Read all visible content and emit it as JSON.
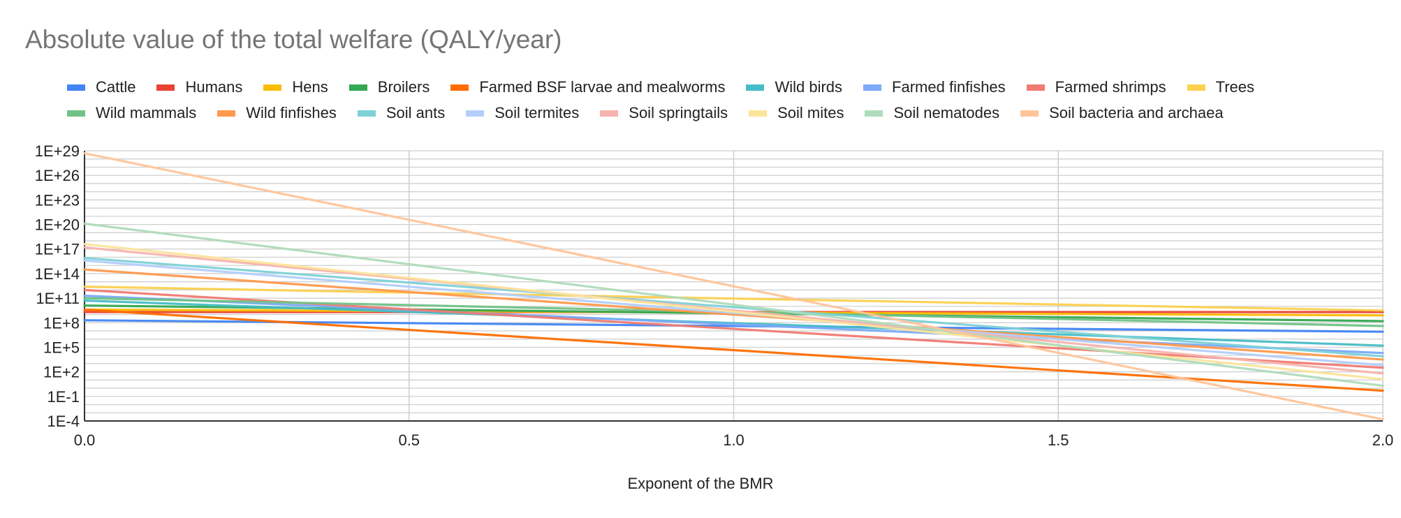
{
  "chart_data": {
    "type": "line",
    "title": "Absolute value of the total welfare (QALY/year)",
    "xlabel": "Exponent of the BMR",
    "ylabel": "",
    "y_scale": "log10",
    "xlim": [
      0,
      2
    ],
    "ylim_log10": [
      -4,
      29
    ],
    "x_ticks": [
      "0.0",
      "0.5",
      "1.0",
      "1.5",
      "2.0"
    ],
    "y_ticks": [
      "1E+29",
      "1E+26",
      "1E+23",
      "1E+20",
      "1E+17",
      "1E+14",
      "1E+11",
      "1E+8",
      "1E+5",
      "1E+2",
      "1E-1",
      "1E-4"
    ],
    "legend_position": "top",
    "x": [
      0,
      2
    ],
    "series": [
      {
        "name": "Cattle",
        "color": "#4285f4",
        "log10_values": [
          8.3,
          6.9
        ]
      },
      {
        "name": "Humans",
        "color": "#ea4335",
        "log10_values": [
          9.3,
          9.3
        ]
      },
      {
        "name": "Hens",
        "color": "#fbbc04",
        "log10_values": [
          9.6,
          8.9
        ]
      },
      {
        "name": "Broilers",
        "color": "#34a853",
        "log10_values": [
          10.1,
          8.2
        ]
      },
      {
        "name": "Farmed BSF larvae and mealworms",
        "color": "#ff6d01",
        "log10_values": [
          9.6,
          -0.3
        ]
      },
      {
        "name": "Wild birds",
        "color": "#46bdc6",
        "log10_values": [
          10.7,
          5.2
        ]
      },
      {
        "name": "Farmed finfishes",
        "color": "#7baaf7",
        "log10_values": [
          11.3,
          4.3
        ]
      },
      {
        "name": "Farmed shrimps",
        "color": "#f07b72",
        "log10_values": [
          12.0,
          2.5
        ]
      },
      {
        "name": "Trees",
        "color": "#fcd04f",
        "log10_values": [
          12.4,
          9.5
        ]
      },
      {
        "name": "Wild mammals",
        "color": "#71c287",
        "log10_values": [
          11.0,
          7.6
        ]
      },
      {
        "name": "Wild finfishes",
        "color": "#ff994d",
        "log10_values": [
          14.5,
          3.5
        ]
      },
      {
        "name": "Soil ants",
        "color": "#7ed1d7",
        "log10_values": [
          15.9,
          3.9
        ]
      },
      {
        "name": "Soil termites",
        "color": "#b3cefb",
        "log10_values": [
          15.6,
          2.8
        ]
      },
      {
        "name": "Soil springtails",
        "color": "#f7b4ae",
        "log10_values": [
          17.2,
          1.8
        ]
      },
      {
        "name": "Soil mites",
        "color": "#fde49b",
        "log10_values": [
          17.6,
          1.1
        ]
      },
      {
        "name": "Soil nematodes",
        "color": "#aedcba",
        "log10_values": [
          20.1,
          0.3
        ]
      },
      {
        "name": "Soil bacteria and archaea",
        "color": "#ffc599",
        "log10_values": [
          28.7,
          -3.8
        ]
      }
    ]
  }
}
